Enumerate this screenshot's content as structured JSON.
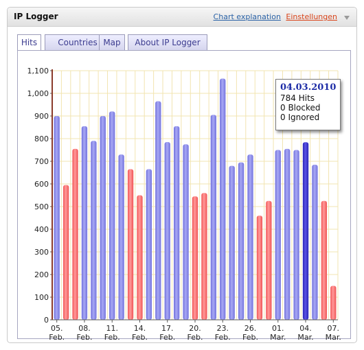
{
  "widget": {
    "title": "IP Logger",
    "links": {
      "chart_explanation": "Chart explanation",
      "settings": "Einstellungen"
    }
  },
  "tabs": [
    {
      "label": "Hits",
      "active": true
    },
    {
      "label": "Countries",
      "active": false
    },
    {
      "label": "Map",
      "active": false
    },
    {
      "label": "About IP Logger",
      "active": false
    }
  ],
  "tooltip": {
    "date": "04.03.2010",
    "hits": "784 Hits",
    "blocked": "0 Blocked",
    "ignored": "0 Ignored"
  },
  "colors": {
    "weekday_bar": "#8888e6",
    "weekend_bar": "#ff6b6b",
    "highlight_bar": "#3a32c8",
    "grid": "#f2e4b0",
    "axis": "#8a3a2a"
  },
  "chart_data": {
    "type": "bar",
    "ylim": [
      0,
      1100
    ],
    "yticks": [
      "0",
      "100",
      "200",
      "300",
      "400",
      "500",
      "600",
      "700",
      "800",
      "900",
      "1,000",
      "1,100"
    ],
    "x_tick_labels": [
      {
        "day": "05.",
        "month": "Feb."
      },
      {
        "day": "08.",
        "month": "Feb."
      },
      {
        "day": "11.",
        "month": "Feb."
      },
      {
        "day": "14.",
        "month": "Feb."
      },
      {
        "day": "17.",
        "month": "Feb."
      },
      {
        "day": "20.",
        "month": "Feb."
      },
      {
        "day": "23.",
        "month": "Feb."
      },
      {
        "day": "26.",
        "month": "Feb."
      },
      {
        "day": "01.",
        "month": "Mar."
      },
      {
        "day": "04.",
        "month": "Mar."
      },
      {
        "day": "07.",
        "month": "Mar."
      }
    ],
    "dates": [
      "2010-02-05",
      "2010-02-06",
      "2010-02-07",
      "2010-02-08",
      "2010-02-09",
      "2010-02-10",
      "2010-02-11",
      "2010-02-12",
      "2010-02-13",
      "2010-02-14",
      "2010-02-15",
      "2010-02-16",
      "2010-02-17",
      "2010-02-18",
      "2010-02-19",
      "2010-02-20",
      "2010-02-21",
      "2010-02-22",
      "2010-02-23",
      "2010-02-24",
      "2010-02-25",
      "2010-02-26",
      "2010-02-27",
      "2010-02-28",
      "2010-03-01",
      "2010-03-02",
      "2010-03-03",
      "2010-03-04",
      "2010-03-05",
      "2010-03-06",
      "2010-03-07"
    ],
    "values": [
      900,
      595,
      755,
      855,
      790,
      900,
      920,
      730,
      665,
      550,
      665,
      965,
      785,
      855,
      775,
      545,
      560,
      905,
      1065,
      680,
      695,
      730,
      460,
      525,
      750,
      755,
      750,
      784,
      685,
      525,
      150
    ],
    "weekend": [
      false,
      true,
      true,
      false,
      false,
      false,
      false,
      false,
      true,
      true,
      false,
      false,
      false,
      false,
      false,
      true,
      true,
      false,
      false,
      false,
      false,
      false,
      true,
      true,
      false,
      false,
      false,
      false,
      false,
      true,
      true
    ],
    "highlighted": "2010-03-04",
    "grid": true
  }
}
